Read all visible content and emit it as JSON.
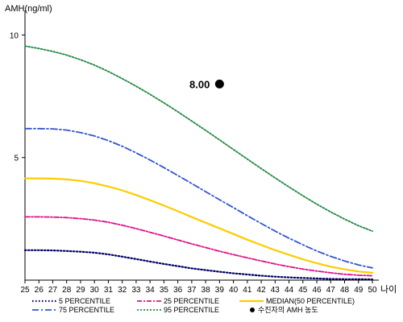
{
  "chart_data": {
    "type": "line",
    "ylabel": "AMH(ng/ml)",
    "xlabel": "나이",
    "xlim": [
      25,
      50
    ],
    "ylim": [
      0,
      11
    ],
    "x_ticks": [
      25,
      26,
      27,
      28,
      29,
      30,
      31,
      32,
      33,
      34,
      35,
      36,
      37,
      38,
      39,
      40,
      41,
      42,
      43,
      44,
      45,
      46,
      47,
      48,
      49,
      50
    ],
    "y_ticks": [
      5,
      10
    ],
    "grid": false,
    "x": [
      25,
      26,
      27,
      28,
      29,
      30,
      31,
      32,
      33,
      34,
      35,
      36,
      37,
      38,
      39,
      40,
      41,
      42,
      43,
      44,
      45,
      46,
      47,
      48,
      49,
      50
    ],
    "series": [
      {
        "name": "5 PERCENTILE",
        "color": "#000066",
        "dash": "1.5,2.5",
        "width": 2.2,
        "values": [
          1.22,
          1.22,
          1.21,
          1.19,
          1.16,
          1.12,
          1.05,
          0.96,
          0.86,
          0.76,
          0.66,
          0.57,
          0.48,
          0.41,
          0.34,
          0.28,
          0.23,
          0.18,
          0.14,
          0.11,
          0.09,
          0.07,
          0.05,
          0.04,
          0.04,
          0.03
        ]
      },
      {
        "name": "25 PERCENTILE",
        "color": "#dd1188",
        "dash": "6,2,2,2",
        "width": 1.8,
        "values": [
          2.58,
          2.58,
          2.57,
          2.55,
          2.51,
          2.45,
          2.36,
          2.24,
          2.1,
          1.95,
          1.8,
          1.64,
          1.48,
          1.33,
          1.18,
          1.04,
          0.91,
          0.78,
          0.66,
          0.55,
          0.45,
          0.37,
          0.3,
          0.24,
          0.2,
          0.18
        ]
      },
      {
        "name": "MEDIAN(50 PERCENTILE)",
        "color": "#ffcc00",
        "dash": "",
        "width": 2.2,
        "values": [
          4.15,
          4.15,
          4.14,
          4.11,
          4.05,
          3.95,
          3.82,
          3.66,
          3.47,
          3.26,
          3.04,
          2.81,
          2.57,
          2.34,
          2.11,
          1.88,
          1.65,
          1.43,
          1.22,
          1.03,
          0.85,
          0.69,
          0.55,
          0.44,
          0.35,
          0.3
        ]
      },
      {
        "name": "75 PERCENTILE",
        "color": "#3355cc",
        "dash": "8,3,2,3",
        "width": 1.8,
        "values": [
          6.18,
          6.18,
          6.17,
          6.12,
          6.02,
          5.88,
          5.69,
          5.46,
          5.19,
          4.9,
          4.59,
          4.27,
          3.94,
          3.61,
          3.28,
          2.96,
          2.63,
          2.31,
          2.0,
          1.71,
          1.44,
          1.19,
          0.97,
          0.78,
          0.62,
          0.5
        ]
      },
      {
        "name": "95 PERCENTILE",
        "color": "#228844",
        "dash": "2,2",
        "width": 1.8,
        "values": [
          9.55,
          9.45,
          9.33,
          9.18,
          8.99,
          8.77,
          8.51,
          8.22,
          7.91,
          7.58,
          7.23,
          6.87,
          6.49,
          6.11,
          5.72,
          5.33,
          4.94,
          4.55,
          4.17,
          3.8,
          3.44,
          3.1,
          2.78,
          2.49,
          2.22,
          2.0
        ]
      }
    ],
    "points": [
      {
        "name": "수진자의 AMH 농도",
        "x": 39,
        "y": 8.0,
        "label": "8.00",
        "color": "#000000"
      }
    ],
    "legend_position": "bottom"
  }
}
